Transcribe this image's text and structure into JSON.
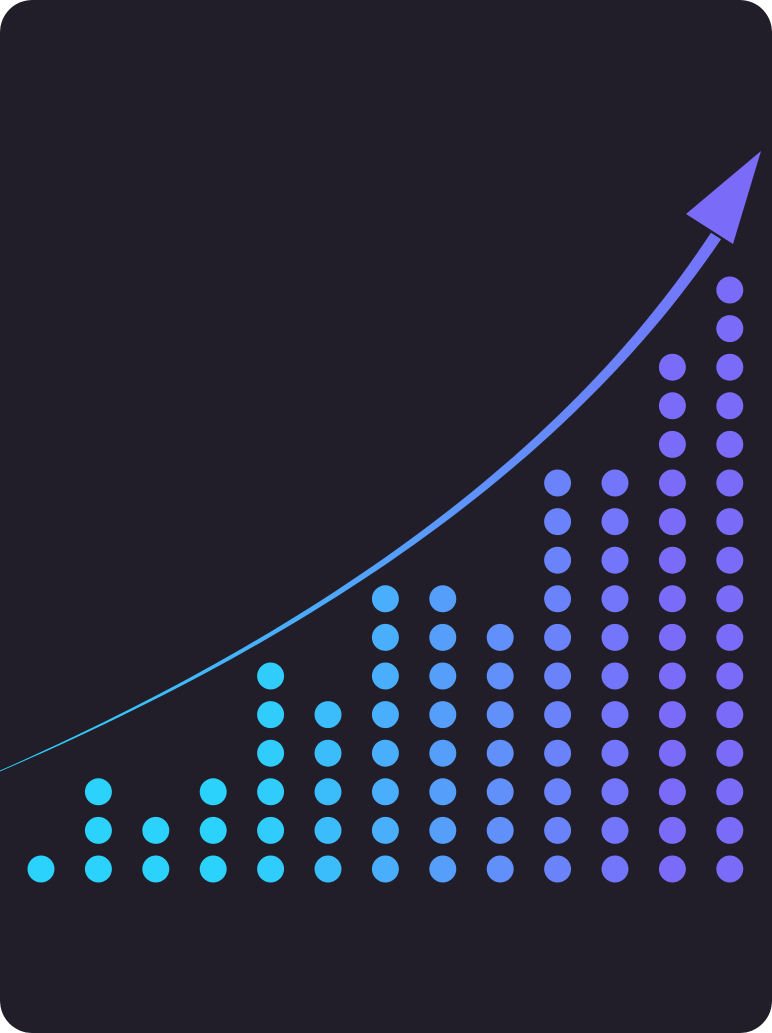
{
  "colors": {
    "background": "#211e29",
    "gradient_start": "#2bd2fb",
    "gradient_mid": "#5f93fb",
    "gradient_end": "#7a6cf9"
  },
  "chart_data": {
    "type": "bar",
    "style": "dot-matrix",
    "title": "",
    "xlabel": "",
    "ylabel": "",
    "grid": false,
    "legend": "none",
    "values": [
      1,
      3,
      2,
      3,
      6,
      5,
      8,
      8,
      7,
      11,
      11,
      14,
      16
    ],
    "ylim": [
      0,
      16
    ],
    "trend": {
      "type": "curve",
      "direction": "up",
      "arrowhead": true
    }
  }
}
